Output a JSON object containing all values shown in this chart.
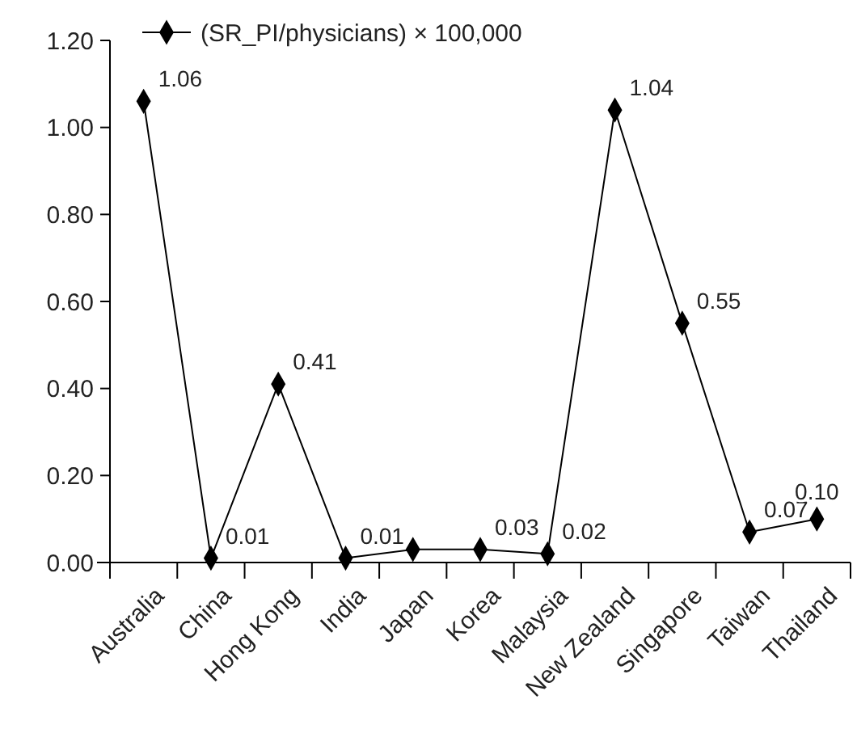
{
  "chart_data": {
    "type": "line",
    "categories": [
      "Australia",
      "China",
      "Hong Kong",
      "India",
      "Japan",
      "Korea",
      "Malaysia",
      "New Zealand",
      "Singapore",
      "Taiwan",
      "Thailand"
    ],
    "series": [
      {
        "name": "(SR_PI/physicians) × 100,000",
        "color": "#000000",
        "values": [
          1.06,
          0.01,
          0.41,
          0.01,
          0.03,
          0.03,
          0.02,
          1.04,
          0.55,
          0.07,
          0.1
        ],
        "value_labels": [
          "1.06",
          "0.01",
          "0.41",
          "0.01",
          null,
          "0.03",
          "0.02",
          "1.04",
          "0.55",
          "0.07",
          "0.10"
        ]
      }
    ],
    "ylim": [
      0,
      1.2
    ],
    "yticks": [
      {
        "value": 0,
        "label": "0.00"
      },
      {
        "value": 0.2,
        "label": "0.20"
      },
      {
        "value": 0.4,
        "label": "0.40"
      },
      {
        "value": 0.6,
        "label": "0.60"
      },
      {
        "value": 0.8,
        "label": "0.80"
      },
      {
        "value": 1,
        "label": "1.00"
      },
      {
        "value": 1.2,
        "label": "1.20"
      }
    ],
    "marker": "diamond",
    "line_style": "solid",
    "legend": "top left",
    "grid": false
  }
}
